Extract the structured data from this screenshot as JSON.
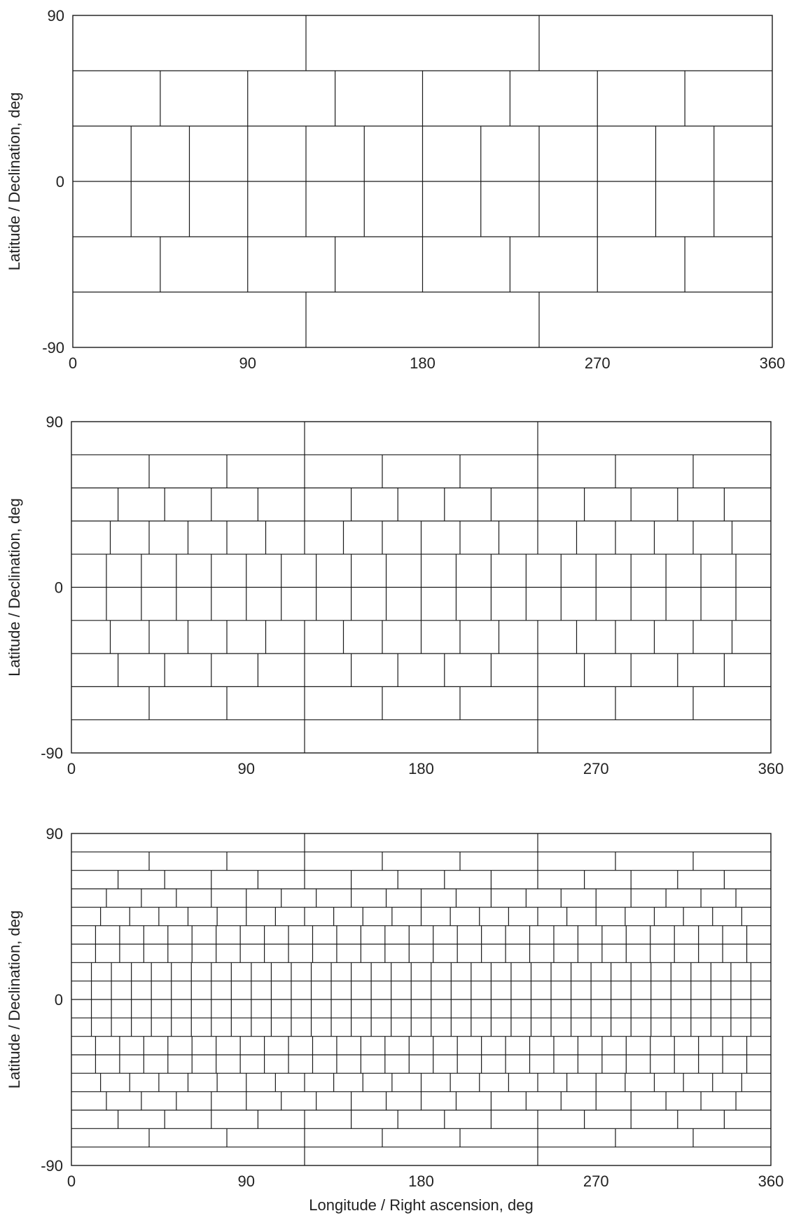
{
  "chart_data": [
    {
      "type": "grid",
      "panel": "top",
      "xlim": [
        0,
        360
      ],
      "ylim": [
        -90,
        90
      ],
      "xticks": [
        "0",
        "90",
        "180",
        "270",
        "360"
      ],
      "yticks": [
        "90",
        "0",
        "-90"
      ],
      "xlabel": "",
      "ylabel": "Latitude / Declination, deg",
      "bands": [
        {
          "lat_min": -90,
          "lat_max": -60,
          "cells": 3
        },
        {
          "lat_min": -60,
          "lat_max": -30,
          "cells": 8
        },
        {
          "lat_min": -30,
          "lat_max": 0,
          "cells": 12
        },
        {
          "lat_min": 0,
          "lat_max": 30,
          "cells": 12
        },
        {
          "lat_min": 30,
          "lat_max": 60,
          "cells": 8
        },
        {
          "lat_min": 60,
          "lat_max": 90,
          "cells": 3
        }
      ]
    },
    {
      "type": "grid",
      "panel": "middle",
      "xlim": [
        0,
        360
      ],
      "ylim": [
        -90,
        90
      ],
      "xticks": [
        "0",
        "90",
        "180",
        "270",
        "360"
      ],
      "yticks": [
        "90",
        "0",
        "-90"
      ],
      "xlabel": "",
      "ylabel": "Latitude / Declination, deg",
      "bands": [
        {
          "lat_min": -90,
          "lat_max": -72,
          "cells": 3
        },
        {
          "lat_min": -72,
          "lat_max": -54,
          "cells": 9
        },
        {
          "lat_min": -54,
          "lat_max": -36,
          "cells": 15
        },
        {
          "lat_min": -36,
          "lat_max": -18,
          "cells": 18
        },
        {
          "lat_min": -18,
          "lat_max": 0,
          "cells": 20
        },
        {
          "lat_min": 0,
          "lat_max": 18,
          "cells": 20
        },
        {
          "lat_min": 18,
          "lat_max": 36,
          "cells": 18
        },
        {
          "lat_min": 36,
          "lat_max": 54,
          "cells": 15
        },
        {
          "lat_min": 54,
          "lat_max": 72,
          "cells": 9
        },
        {
          "lat_min": 72,
          "lat_max": 90,
          "cells": 3
        }
      ]
    },
    {
      "type": "grid",
      "panel": "bottom",
      "xlim": [
        0,
        360
      ],
      "ylim": [
        -90,
        90
      ],
      "xticks": [
        "0",
        "90",
        "180",
        "270",
        "360"
      ],
      "yticks": [
        "90",
        "0",
        "-90"
      ],
      "xlabel": "Longitude / Right ascension, deg",
      "ylabel": "Latitude / Declination, deg",
      "bands": [
        {
          "lat_min": -90,
          "lat_max": -80,
          "cells": 3
        },
        {
          "lat_min": -80,
          "lat_max": -70,
          "cells": 9
        },
        {
          "lat_min": -70,
          "lat_max": -60,
          "cells": 15
        },
        {
          "lat_min": -60,
          "lat_max": -50,
          "cells": 20
        },
        {
          "lat_min": -50,
          "lat_max": -40,
          "cells": 24
        },
        {
          "lat_min": -40,
          "lat_max": -30,
          "cells": 29
        },
        {
          "lat_min": -30,
          "lat_max": -20,
          "cells": 29
        },
        {
          "lat_min": -20,
          "lat_max": -10,
          "cells": 35
        },
        {
          "lat_min": -10,
          "lat_max": 0,
          "cells": 35
        },
        {
          "lat_min": 0,
          "lat_max": 10,
          "cells": 35
        },
        {
          "lat_min": 10,
          "lat_max": 20,
          "cells": 35
        },
        {
          "lat_min": 20,
          "lat_max": 30,
          "cells": 29
        },
        {
          "lat_min": 30,
          "lat_max": 40,
          "cells": 29
        },
        {
          "lat_min": 40,
          "lat_max": 50,
          "cells": 24
        },
        {
          "lat_min": 50,
          "lat_max": 60,
          "cells": 20
        },
        {
          "lat_min": 60,
          "lat_max": 70,
          "cells": 15
        },
        {
          "lat_min": 70,
          "lat_max": 80,
          "cells": 9
        },
        {
          "lat_min": 80,
          "lat_max": 90,
          "cells": 3
        }
      ]
    }
  ]
}
